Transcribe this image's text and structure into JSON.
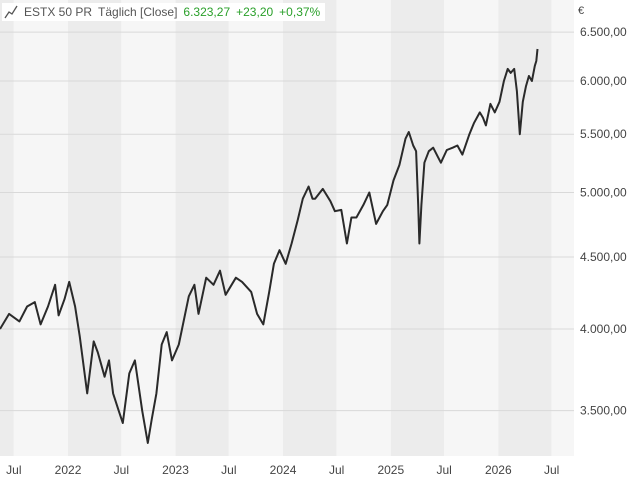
{
  "legend": {
    "icon": "line-chart-icon",
    "name": "ESTX 50 PR",
    "period": "Täglich [Close]",
    "last": "6.323,27",
    "change": "+23,20",
    "change_pct": "+0,37%",
    "positive_color": "#2aa02a"
  },
  "colors": {
    "line": "#2a2a2a",
    "band_a": "#ececec",
    "band_b": "#f6f6f6",
    "grid": "#d9d9d9",
    "text": "#444444"
  },
  "chart_data": {
    "type": "line",
    "title": "",
    "xlabel": "",
    "ylabel": "€",
    "y_scale": "log",
    "ylim": [
      3250,
      6850
    ],
    "xlim": [
      "2021-05-15",
      "2026-09-15"
    ],
    "y_ticks": [
      {
        "value": 3500,
        "label": "3.500,00"
      },
      {
        "value": 4000,
        "label": "4.000,00"
      },
      {
        "value": 4500,
        "label": "4.500,00"
      },
      {
        "value": 5000,
        "label": "5.000,00"
      },
      {
        "value": 5500,
        "label": "5.500,00"
      },
      {
        "value": 6000,
        "label": "6.000,00"
      },
      {
        "value": 6500,
        "label": "6.500,00"
      }
    ],
    "x_ticks": [
      {
        "date": "2021-07-01",
        "label": "Jul"
      },
      {
        "date": "2022-01-01",
        "label": "2022"
      },
      {
        "date": "2022-07-01",
        "label": "Jul"
      },
      {
        "date": "2023-01-01",
        "label": "2023"
      },
      {
        "date": "2023-07-01",
        "label": "Jul"
      },
      {
        "date": "2024-01-01",
        "label": "2024"
      },
      {
        "date": "2024-07-01",
        "label": "Jul"
      },
      {
        "date": "2025-01-01",
        "label": "2025"
      },
      {
        "date": "2025-07-01",
        "label": "Jul"
      },
      {
        "date": "2026-01-01",
        "label": "2026"
      },
      {
        "date": "2026-07-01",
        "label": "Jul"
      }
    ],
    "grid": true,
    "legend_position": "top-left",
    "series": [
      {
        "name": "ESTX 50 PR",
        "x": [
          "2021-05-15",
          "2021-06-15",
          "2021-07-20",
          "2021-08-15",
          "2021-09-10",
          "2021-09-30",
          "2021-10-25",
          "2021-11-18",
          "2021-11-30",
          "2021-12-20",
          "2022-01-05",
          "2022-01-25",
          "2022-02-10",
          "2022-03-07",
          "2022-03-29",
          "2022-04-12",
          "2022-05-05",
          "2022-05-20",
          "2022-06-03",
          "2022-06-22",
          "2022-07-06",
          "2022-07-28",
          "2022-08-16",
          "2022-09-10",
          "2022-09-29",
          "2022-10-12",
          "2022-10-28",
          "2022-11-15",
          "2022-12-02",
          "2022-12-20",
          "2023-01-12",
          "2023-02-15",
          "2023-03-06",
          "2023-03-20",
          "2023-04-15",
          "2023-05-10",
          "2023-06-01",
          "2023-06-20",
          "2023-07-25",
          "2023-08-15",
          "2023-09-15",
          "2023-10-05",
          "2023-10-26",
          "2023-11-15",
          "2023-12-01",
          "2023-12-20",
          "2024-01-10",
          "2024-01-30",
          "2024-02-20",
          "2024-03-08",
          "2024-03-28",
          "2024-04-10",
          "2024-04-19",
          "2024-05-15",
          "2024-06-10",
          "2024-06-25",
          "2024-07-17",
          "2024-08-05",
          "2024-08-20",
          "2024-09-06",
          "2024-09-30",
          "2024-10-20",
          "2024-11-12",
          "2024-12-05",
          "2024-12-20",
          "2025-01-10",
          "2025-01-30",
          "2025-02-20",
          "2025-03-03",
          "2025-03-18",
          "2025-03-28",
          "2025-04-04",
          "2025-04-08",
          "2025-04-15",
          "2025-04-25",
          "2025-05-10",
          "2025-05-25",
          "2025-06-10",
          "2025-06-20",
          "2025-07-10",
          "2025-07-30",
          "2025-08-15",
          "2025-09-01",
          "2025-09-25",
          "2025-10-10",
          "2025-10-30",
          "2025-11-10",
          "2025-11-20",
          "2025-12-05",
          "2025-12-20",
          "2026-01-05",
          "2026-01-20",
          "2026-02-02",
          "2026-02-12",
          "2026-02-24",
          "2026-03-05",
          "2026-03-15",
          "2026-03-25",
          "2026-04-05",
          "2026-04-15",
          "2026-04-25",
          "2026-05-05",
          "2026-05-10",
          "2026-05-14"
        ],
        "values": [
          4000,
          4100,
          4050,
          4150,
          4180,
          4030,
          4150,
          4300,
          4090,
          4200,
          4320,
          4150,
          3950,
          3600,
          3920,
          3850,
          3700,
          3800,
          3600,
          3500,
          3430,
          3720,
          3800,
          3500,
          3320,
          3450,
          3600,
          3900,
          3980,
          3800,
          3900,
          4220,
          4300,
          4100,
          4350,
          4300,
          4400,
          4230,
          4350,
          4320,
          4250,
          4100,
          4030,
          4250,
          4450,
          4550,
          4450,
          4600,
          4780,
          4950,
          5050,
          4950,
          4950,
          5030,
          4930,
          4850,
          4860,
          4600,
          4800,
          4800,
          4900,
          5000,
          4750,
          4850,
          4900,
          5100,
          5230,
          5460,
          5520,
          5400,
          5350,
          4900,
          4600,
          4900,
          5250,
          5350,
          5380,
          5300,
          5250,
          5360,
          5380,
          5400,
          5320,
          5500,
          5600,
          5700,
          5650,
          5580,
          5780,
          5700,
          5800,
          6000,
          6120,
          6080,
          6120,
          5900,
          5500,
          5800,
          5950,
          6050,
          6000,
          6150,
          6200,
          6323
        ]
      }
    ]
  }
}
